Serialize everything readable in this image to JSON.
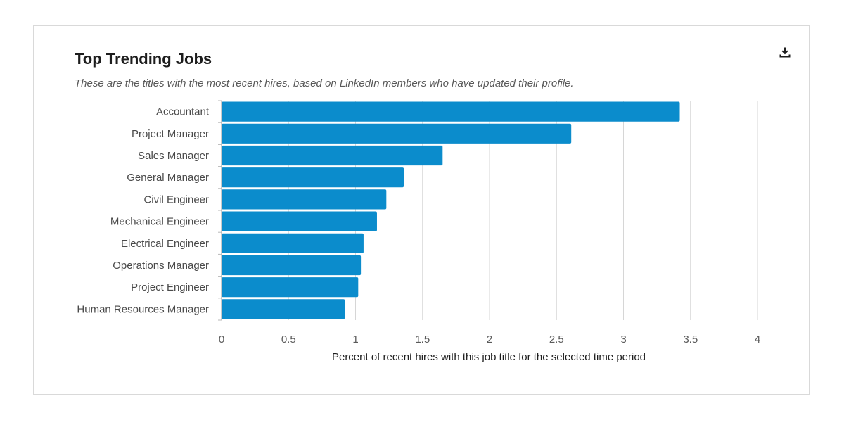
{
  "header": {
    "title": "Top Trending Jobs",
    "subtitle": "These are the titles with the most recent hires, based on LinkedIn members who have updated their profile.",
    "download_icon": "download-icon"
  },
  "colors": {
    "bar": "#0b8ccc",
    "grid": "#d6d6d6",
    "axis": "#b8b8b8",
    "border": "#d9d9d9"
  },
  "chart_data": {
    "type": "bar",
    "orientation": "horizontal",
    "title": "Top Trending Jobs",
    "xlabel": "Percent of recent hires with this job title for the selected time period",
    "ylabel": "",
    "categories": [
      "Accountant",
      "Project Manager",
      "Sales Manager",
      "General Manager",
      "Civil Engineer",
      "Mechanical Engineer",
      "Electrical Engineer",
      "Operations Manager",
      "Project Engineer",
      "Human Resources Manager"
    ],
    "values": [
      3.42,
      2.61,
      1.65,
      1.36,
      1.23,
      1.16,
      1.06,
      1.04,
      1.02,
      0.92
    ],
    "xlim": [
      0,
      4
    ],
    "xticks": [
      0,
      0.5,
      1,
      1.5,
      2,
      2.5,
      3,
      3.5,
      4
    ],
    "xtick_labels": [
      "0",
      "0.5",
      "1",
      "1.5",
      "2",
      "2.5",
      "3",
      "3.5",
      "4"
    ],
    "grid": true
  }
}
